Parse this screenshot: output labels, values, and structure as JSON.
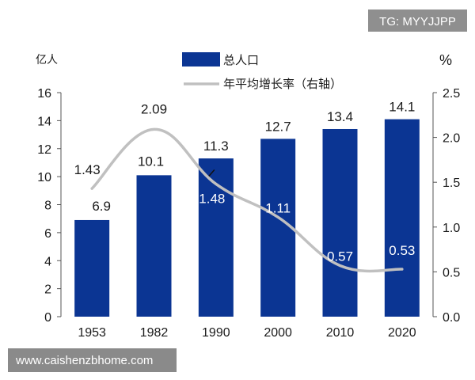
{
  "watermarks": {
    "top_right": "TG: MYYJJPP",
    "bottom_left": "www.caishenzbhome.com"
  },
  "chart_data": {
    "type": "bar",
    "categories": [
      "1953",
      "1982",
      "1990",
      "2000",
      "2010",
      "2020"
    ],
    "series": [
      {
        "name": "总人口",
        "type": "bar",
        "axis": "left",
        "color": "#0b3593",
        "values": [
          6.9,
          10.1,
          11.3,
          12.7,
          13.4,
          14.1
        ],
        "labels": [
          "6.9",
          "10.1",
          "11.3",
          "12.7",
          "13.4",
          "14.1"
        ]
      },
      {
        "name": "年平均增长率（右轴）",
        "type": "line",
        "axis": "right",
        "color": "#c0c0c0",
        "values": [
          1.43,
          2.09,
          1.48,
          1.11,
          0.57,
          0.53
        ],
        "labels": [
          "1.43",
          "2.09",
          "1.48",
          "1.11",
          "0.57",
          "0.53"
        ]
      }
    ],
    "y_left": {
      "unit_label": "亿人",
      "lim": [
        0,
        16
      ],
      "ticks": [
        "0",
        "2",
        "4",
        "6",
        "8",
        "10",
        "12",
        "14",
        "16"
      ]
    },
    "y_right": {
      "unit_label": "%",
      "lim": [
        0,
        2.5
      ],
      "ticks": [
        "0.0",
        "0.5",
        "1.0",
        "1.5",
        "2.0",
        "2.5"
      ]
    },
    "grid": false,
    "legend_position": "top"
  }
}
